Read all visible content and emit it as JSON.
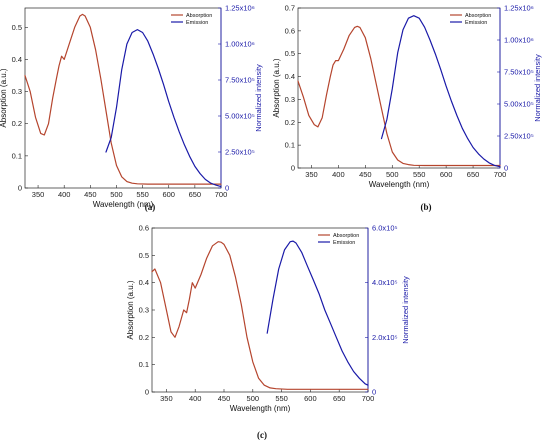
{
  "colors": {
    "absorption": "#b5452e",
    "emission": "#1a1aa8",
    "axis": "#222222"
  },
  "chart_data": [
    {
      "type": "line",
      "panel_label": "(a)",
      "xlabel": "Wavelength (nm)",
      "ylabel": "Absorption (a.u.)",
      "y2label": "Normalized intensity",
      "xlim": [
        325,
        700
      ],
      "ylim": [
        0,
        0.56
      ],
      "y2lim": [
        0,
        1250000.0
      ],
      "x_ticks": [
        350,
        400,
        450,
        500,
        550,
        600,
        650,
        700
      ],
      "y_ticks": [
        0,
        0.1,
        0.2,
        0.3,
        0.4,
        0.5
      ],
      "y_tick_labels": [
        "0",
        "0.1",
        "0.2",
        "0.3",
        "0.4",
        "0.5"
      ],
      "y2_ticks": [
        0,
        250000,
        500000,
        750000,
        1000000,
        1250000
      ],
      "y2_tick_labels": [
        "0",
        "2.50x10⁵",
        "5.00x10⁵",
        "7.50x10⁵",
        "1.00x10⁶",
        "1.25x10⁶"
      ],
      "legend_position": "top-right",
      "series": [
        {
          "name": "Absorption",
          "axis": "left",
          "x": [
            325,
            335,
            345,
            355,
            362,
            370,
            378,
            385,
            390,
            395,
            400,
            410,
            420,
            430,
            435,
            440,
            450,
            460,
            470,
            480,
            490,
            500,
            510,
            520,
            530,
            540,
            560,
            600,
            650,
            700
          ],
          "y": [
            0.35,
            0.3,
            0.22,
            0.17,
            0.165,
            0.2,
            0.28,
            0.34,
            0.38,
            0.41,
            0.4,
            0.45,
            0.5,
            0.535,
            0.54,
            0.535,
            0.5,
            0.43,
            0.34,
            0.24,
            0.14,
            0.07,
            0.035,
            0.02,
            0.015,
            0.013,
            0.012,
            0.012,
            0.012,
            0.012
          ]
        },
        {
          "name": "Emission",
          "axis": "right",
          "x": [
            480,
            490,
            500,
            510,
            520,
            530,
            540,
            550,
            560,
            570,
            580,
            590,
            600,
            610,
            620,
            630,
            640,
            650,
            660,
            670,
            680,
            690,
            700
          ],
          "y": [
            250000,
            350000,
            560000,
            820000,
            1000000,
            1080000,
            1100000,
            1080000,
            1020000,
            930000,
            830000,
            720000,
            600000,
            490000,
            390000,
            300000,
            220000,
            150000,
            100000,
            60000,
            35000,
            20000,
            10000
          ]
        }
      ]
    },
    {
      "type": "line",
      "panel_label": "(b)",
      "xlabel": "Wavelength (nm)",
      "ylabel": "Absorption (a.u.)",
      "y2label": "Normalized intensity",
      "xlim": [
        325,
        700
      ],
      "ylim": [
        0,
        0.7
      ],
      "y2lim": [
        0,
        1250000.0
      ],
      "x_ticks": [
        350,
        400,
        450,
        500,
        550,
        600,
        650,
        700
      ],
      "y_ticks": [
        0,
        0.1,
        0.2,
        0.3,
        0.4,
        0.5,
        0.6,
        0.7
      ],
      "y_tick_labels": [
        "0",
        "0.1",
        "0.2",
        "0.3",
        "0.4",
        "0.5",
        "0.6",
        "0.7"
      ],
      "y2_ticks": [
        0,
        250000,
        500000,
        750000,
        1000000,
        1250000
      ],
      "y2_tick_labels": [
        "0",
        "2.50x10⁵",
        "5.00x10⁵",
        "7.50x10⁵",
        "1.00x10⁶",
        "1.25x10⁶"
      ],
      "legend_position": "top-right",
      "series": [
        {
          "name": "Absorption",
          "axis": "left",
          "x": [
            325,
            335,
            345,
            355,
            362,
            370,
            378,
            385,
            390,
            395,
            400,
            410,
            420,
            430,
            435,
            440,
            450,
            460,
            470,
            480,
            490,
            500,
            510,
            520,
            530,
            540,
            560,
            600,
            650,
            700
          ],
          "y": [
            0.38,
            0.31,
            0.23,
            0.19,
            0.18,
            0.22,
            0.32,
            0.4,
            0.45,
            0.47,
            0.47,
            0.52,
            0.58,
            0.615,
            0.62,
            0.615,
            0.57,
            0.48,
            0.37,
            0.26,
            0.15,
            0.07,
            0.035,
            0.02,
            0.015,
            0.012,
            0.011,
            0.011,
            0.011,
            0.011
          ]
        },
        {
          "name": "Emission",
          "axis": "right",
          "x": [
            480,
            490,
            500,
            510,
            520,
            530,
            540,
            550,
            560,
            570,
            580,
            590,
            600,
            610,
            620,
            630,
            640,
            650,
            660,
            670,
            680,
            690,
            700
          ],
          "y": [
            230000,
            380000,
            620000,
            900000,
            1080000,
            1170000,
            1190000,
            1170000,
            1100000,
            1000000,
            890000,
            770000,
            640000,
            520000,
            410000,
            310000,
            230000,
            160000,
            110000,
            70000,
            40000,
            20000,
            10000
          ]
        }
      ]
    },
    {
      "type": "line",
      "panel_label": "(c)",
      "xlabel": "Wavelength (nm)",
      "ylabel": "Absorption (a.u.)",
      "y2label": "Normalized intensity",
      "xlim": [
        325,
        700
      ],
      "ylim": [
        0,
        0.6
      ],
      "y2lim": [
        0,
        600000.0
      ],
      "x_ticks": [
        350,
        400,
        450,
        500,
        550,
        600,
        650,
        700
      ],
      "y_ticks": [
        0,
        0.1,
        0.2,
        0.3,
        0.4,
        0.5,
        0.6
      ],
      "y_tick_labels": [
        "0",
        "0.1",
        "0.2",
        "0.3",
        "0.4",
        "0.5",
        "0.6"
      ],
      "y2_ticks": [
        0,
        200000,
        400000,
        600000
      ],
      "y2_tick_labels": [
        "0",
        "2.0x10⁵",
        "4.0x10⁵",
        "6.0x10⁵"
      ],
      "legend_position": "top-right",
      "series": [
        {
          "name": "Absorption",
          "axis": "left",
          "x": [
            325,
            330,
            340,
            350,
            358,
            365,
            372,
            380,
            385,
            390,
            395,
            400,
            410,
            420,
            430,
            440,
            445,
            450,
            460,
            470,
            480,
            490,
            500,
            510,
            520,
            530,
            540,
            560,
            600,
            650,
            700
          ],
          "y": [
            0.44,
            0.45,
            0.4,
            0.3,
            0.22,
            0.2,
            0.24,
            0.3,
            0.29,
            0.34,
            0.4,
            0.38,
            0.43,
            0.49,
            0.535,
            0.55,
            0.548,
            0.54,
            0.5,
            0.42,
            0.32,
            0.2,
            0.11,
            0.05,
            0.025,
            0.015,
            0.012,
            0.01,
            0.01,
            0.01,
            0.01
          ]
        },
        {
          "name": "Emission",
          "axis": "right",
          "x": [
            525,
            535,
            545,
            555,
            565,
            570,
            575,
            585,
            595,
            605,
            615,
            625,
            635,
            645,
            655,
            665,
            675,
            685,
            695,
            700
          ],
          "y": [
            215000,
            340000,
            450000,
            520000,
            550000,
            552000,
            545000,
            510000,
            460000,
            410000,
            360000,
            300000,
            250000,
            200000,
            150000,
            110000,
            75000,
            50000,
            30000,
            25000
          ]
        }
      ]
    }
  ]
}
